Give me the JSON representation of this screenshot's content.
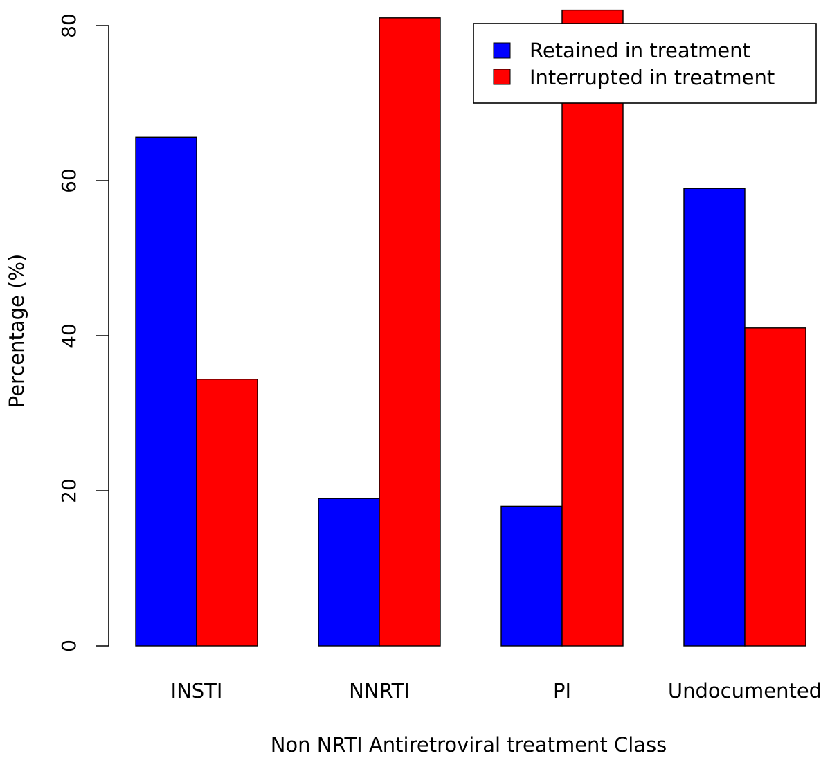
{
  "chart_data": {
    "type": "bar",
    "title": "",
    "xlabel": "Non NRTI Antiretroviral treatment Class",
    "ylabel": "Percentage (%)",
    "categories": [
      "INSTI",
      "NNRTI",
      "PI",
      "Undocumented"
    ],
    "series": [
      {
        "name": "Retained in treatment",
        "color": "#0000ff",
        "values": [
          65.6,
          19.0,
          18.0,
          59.0
        ]
      },
      {
        "name": "Interrupted in treatment",
        "color": "#ff0000",
        "values": [
          34.4,
          81.0,
          82.0,
          41.0
        ]
      }
    ],
    "ylim": [
      0,
      80
    ],
    "yticks": [
      0,
      20,
      40,
      60,
      80
    ],
    "grid": false,
    "legend_position": "top-right"
  }
}
